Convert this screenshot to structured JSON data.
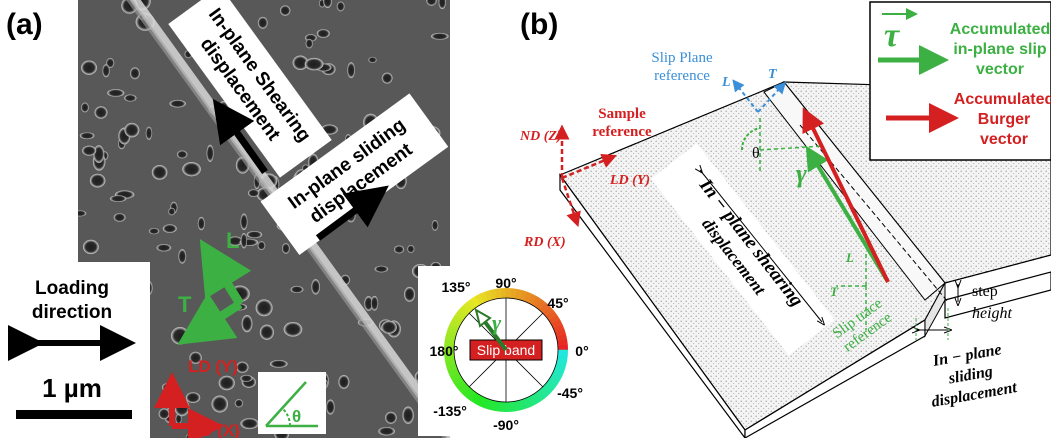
{
  "panel_a": {
    "label": "(a)",
    "shearing_label_line1": "In-plane Shearing",
    "shearing_label_line2": "displacement",
    "sliding_label_line1": "In-plane sliding",
    "sliding_label_line2": "displacement",
    "axis_L": "L",
    "axis_T": "T",
    "loading_line1": "Loading",
    "loading_line2": "direction",
    "scale_bar": "1 µm",
    "ld_label": "LD (Y)",
    "rd_label": "RD (X)",
    "theta": "θ"
  },
  "panel_b": {
    "label": "(b)",
    "legend": {
      "tau_symbol": "τ",
      "tau_line1": "Accumulated",
      "tau_line2": "in-plane slip",
      "tau_line3": "vector",
      "burger_line1": "Accumulated",
      "burger_line2": "Burger",
      "burger_line3": "vector"
    },
    "slip_plane_line1": "Slip Plane",
    "slip_plane_line2": "reference",
    "sample_ref_line1": "Sample",
    "sample_ref_line2": "reference",
    "nd_label": "ND (Z)",
    "ld_label": "LD (Y)",
    "rd_label": "RD (X)",
    "L_vec": "L",
    "T_vec": "T",
    "theta": "θ",
    "gamma": "γ",
    "shearing_line1": "In − plane shearing",
    "shearing_line2": "displacement",
    "slip_trace_line1": "Slip trace",
    "slip_trace_line2": "reference",
    "step_line1": "step",
    "step_line2": "height",
    "sliding_line1": "In − plane",
    "sliding_line2": "sliding",
    "sliding_line3": "displacement"
  },
  "color_wheel": {
    "labels": [
      "135°",
      "90°",
      "45°",
      "180°",
      "0°",
      "-135°",
      "-90°",
      "-45°"
    ],
    "slip_band": "Slip band",
    "gamma": "γ"
  },
  "colors": {
    "green": "#3cb043",
    "red": "#d42020",
    "blue": "#3a8fd8",
    "sem_bg": "#5a5a5a"
  }
}
